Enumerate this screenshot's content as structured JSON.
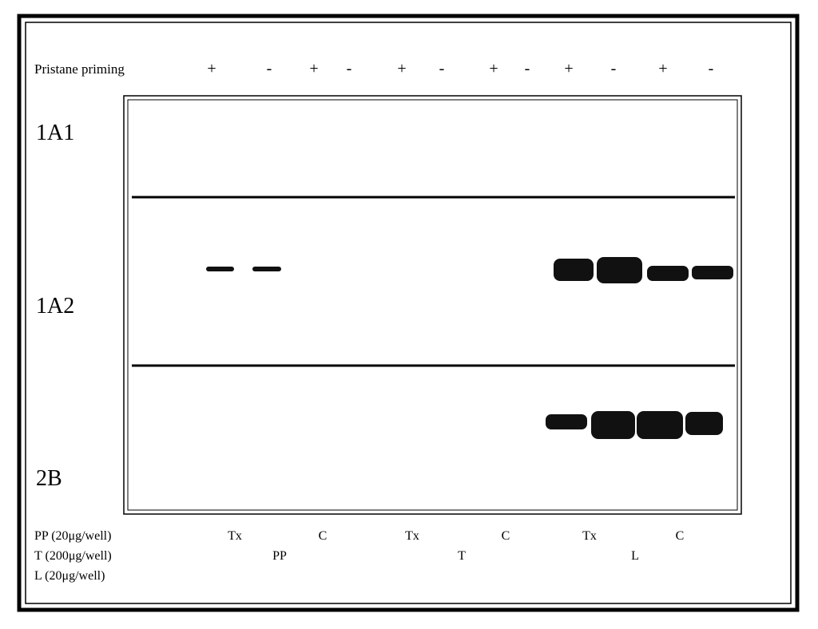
{
  "header": {
    "label": "Pristane priming",
    "signs": [
      "+",
      "-",
      "+",
      "-",
      "+",
      "-",
      "+",
      "-",
      "+",
      "-",
      "+",
      "-"
    ]
  },
  "rows": [
    "1A1",
    "1A2",
    "2B"
  ],
  "legend": {
    "lines": [
      "PP (20μg/well)",
      "T (200μg/well)",
      "L (20μg/well)"
    ],
    "treatments": [
      "Tx",
      "C",
      "Tx",
      "C",
      "Tx",
      "C"
    ],
    "groups": [
      "PP",
      "T",
      "L"
    ]
  }
}
